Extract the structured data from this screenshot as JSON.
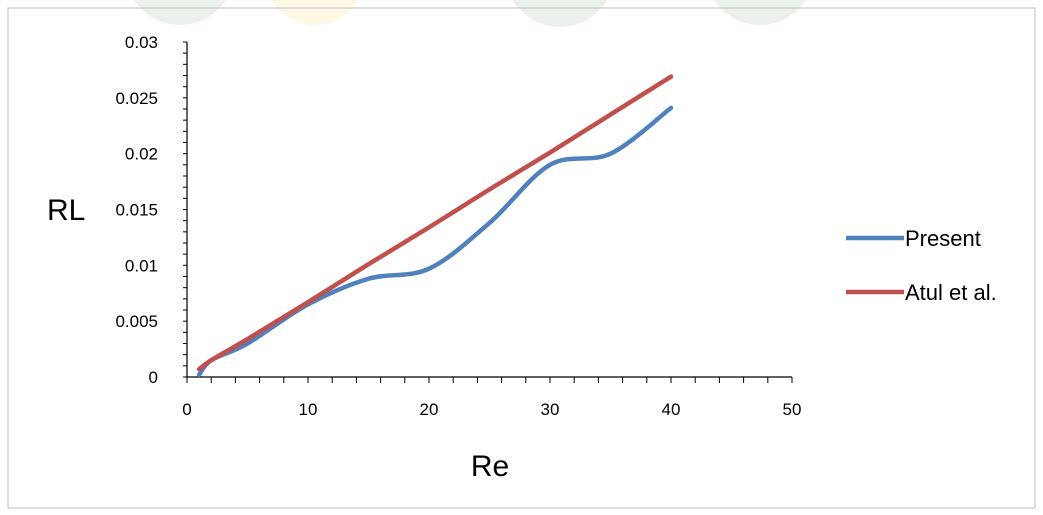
{
  "chart_data": {
    "type": "line",
    "title": "",
    "xlabel": "Re",
    "ylabel": "RL",
    "xlim": [
      0,
      50
    ],
    "ylim": [
      0,
      0.03
    ],
    "x_ticks": [
      "0",
      "10",
      "20",
      "30",
      "40",
      "50"
    ],
    "y_ticks": [
      "0",
      "0.005",
      "0.01",
      "0.015",
      "0.02",
      "0.025",
      "0.03"
    ],
    "grid": false,
    "legend_position": "right",
    "series": [
      {
        "name": "Present",
        "color": "#4F81BD",
        "x": [
          1,
          2,
          5,
          10,
          15,
          20,
          25,
          30,
          35,
          40
        ],
        "y": [
          0.0002,
          0.0015,
          0.003,
          0.0065,
          0.0088,
          0.0097,
          0.0138,
          0.019,
          0.02,
          0.0241
        ]
      },
      {
        "name": "Atul et al.",
        "color": "#C0504D",
        "x": [
          1,
          2,
          5,
          10,
          15,
          20,
          25,
          30,
          35,
          40
        ],
        "y": [
          0.0007,
          0.0015,
          0.0034,
          0.0067,
          0.0101,
          0.0134,
          0.0168,
          0.0201,
          0.0235,
          0.0269
        ]
      }
    ]
  }
}
